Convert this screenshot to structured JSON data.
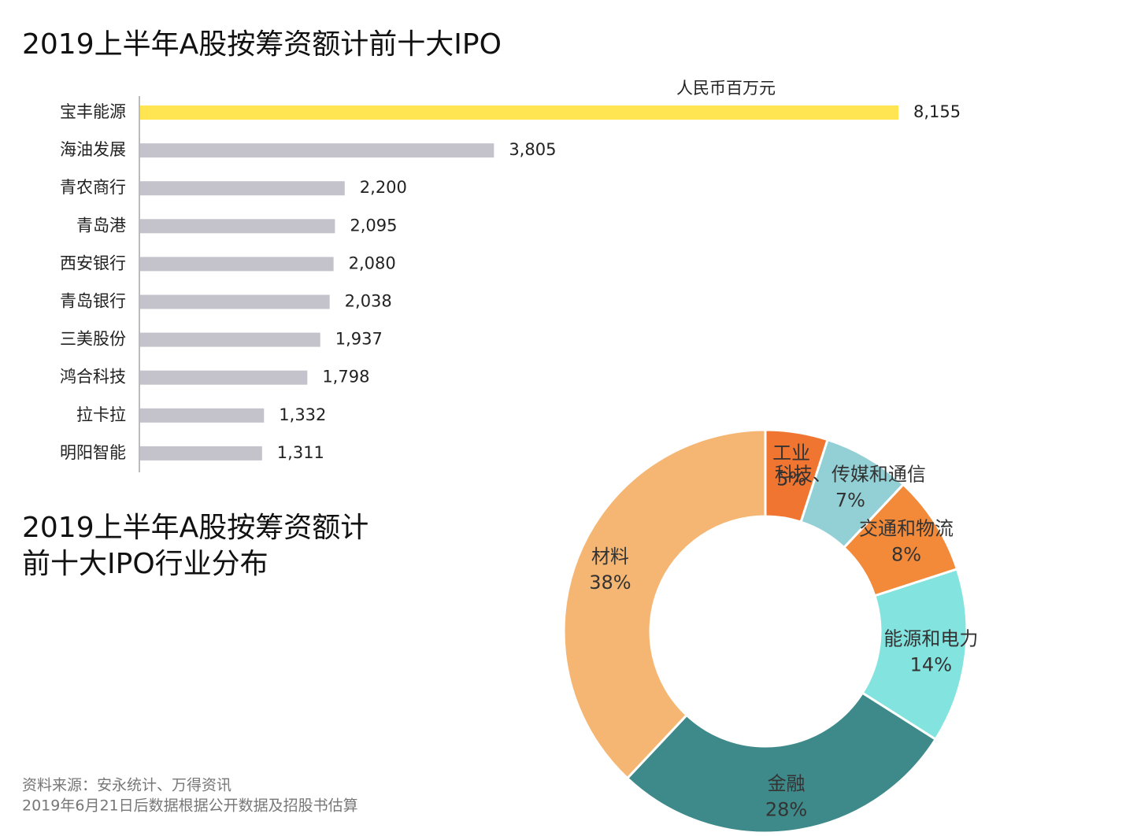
{
  "chart_data": [
    {
      "type": "bar",
      "title": "2019上半年A股按筹资额计前十大IPO",
      "unit_label": "人民币百万元",
      "categories": [
        "宝丰能源",
        "海油发展",
        "青农商行",
        "青岛港",
        "西安银行",
        "青岛银行",
        "三美股份",
        "鸿合科技",
        "拉卡拉",
        "明阳智能"
      ],
      "values": [
        8155,
        3805,
        2200,
        2095,
        2080,
        2038,
        1937,
        1798,
        1332,
        1311
      ],
      "value_labels": [
        "8,155",
        "3,805",
        "2,200",
        "2,095",
        "2,080",
        "2,038",
        "1,937",
        "1,798",
        "1,332",
        "1,311"
      ],
      "colors": [
        "#ffe552",
        "#c4c3cb",
        "#c4c3cb",
        "#c4c3cb",
        "#c4c3cb",
        "#c4c3cb",
        "#c4c3cb",
        "#c4c3cb",
        "#c4c3cb",
        "#c4c3cb"
      ]
    },
    {
      "type": "donut",
      "title": [
        "2019上半年A股按筹资额计",
        "前十大IPO行业分布"
      ],
      "categories": [
        "工业",
        "科技、传媒和通信",
        "交通和物流",
        "能源和电力",
        "金融",
        "材料"
      ],
      "values": [
        5,
        7,
        8,
        14,
        28,
        38
      ],
      "value_labels": [
        "5%",
        "7%",
        "8%",
        "14%",
        "28%",
        "38%"
      ],
      "colors": [
        "#f07530",
        "#93d0d6",
        "#f28a3a",
        "#82e3df",
        "#3e8a8a",
        "#f5b673"
      ]
    }
  ],
  "notes": [
    "资料来源：安永统计、万得资讯",
    "2019年6月21日后数据根据公开数据及招股书估算"
  ]
}
